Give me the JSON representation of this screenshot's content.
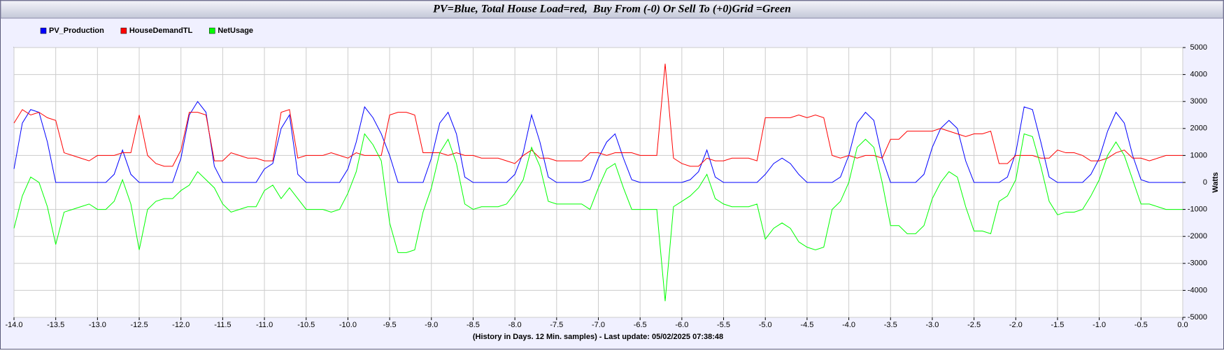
{
  "chart_data": {
    "type": "line",
    "title": "PV=Blue, Total House Load=red,  Buy From (-0) Or Sell To (+0)Grid =Green",
    "x_label": "(History in Days. 12 Min. samples) - Last update: 05/02/2025 07:38:48",
    "y_label": "Watts",
    "y_axis_side": "right",
    "grid": true,
    "xlim": [
      -14,
      0
    ],
    "xticks": [
      {
        "value": -14,
        "label": "-14.0"
      },
      -13.5,
      {
        "value": -13,
        "label": "-13.0"
      },
      -12.5,
      {
        "value": -12,
        "label": "-12.0"
      },
      -11.5,
      {
        "value": -11,
        "label": "-11.0"
      },
      -10.5,
      {
        "value": -10,
        "label": "-10.0"
      },
      -9.5,
      {
        "value": -9,
        "label": "-9.0"
      },
      -8.5,
      {
        "value": -8,
        "label": "-8.0"
      },
      -7.5,
      {
        "value": -7,
        "label": "-7.0"
      },
      -6.5,
      {
        "value": -6,
        "label": "-6.0"
      },
      -5.5,
      {
        "value": -5,
        "label": "-5.0"
      },
      -4.5,
      {
        "value": -4,
        "label": "-4.0"
      },
      -3.5,
      {
        "value": -3,
        "label": "-3.0"
      },
      -2.5,
      {
        "value": -2,
        "label": "-2.0"
      },
      -1.5,
      {
        "value": -1,
        "label": "-1.0"
      },
      -0.5,
      {
        "value": 0,
        "label": "0.0"
      }
    ],
    "ylim": [
      -5000,
      5000
    ],
    "yticks": [
      -5000,
      -4000,
      -3000,
      -2000,
      -1000,
      0,
      1000,
      2000,
      3000,
      4000,
      5000
    ],
    "x": [
      -14,
      -13.9,
      -13.8,
      -13.7,
      -13.6,
      -13.5,
      -13.4,
      -13.3,
      -13.2,
      -13.1,
      -13,
      -12.9,
      -12.8,
      -12.7,
      -12.6,
      -12.5,
      -12.4,
      -12.3,
      -12.2,
      -12.1,
      -12,
      -11.9,
      -11.8,
      -11.7,
      -11.6,
      -11.5,
      -11.4,
      -11.3,
      -11.2,
      -11.1,
      -11,
      -10.9,
      -10.8,
      -10.7,
      -10.6,
      -10.5,
      -10.4,
      -10.3,
      -10.2,
      -10.1,
      -10,
      -9.9,
      -9.8,
      -9.7,
      -9.6,
      -9.5,
      -9.4,
      -9.3,
      -9.2,
      -9.1,
      -9,
      -8.9,
      -8.8,
      -8.7,
      -8.6,
      -8.5,
      -8.4,
      -8.3,
      -8.2,
      -8.1,
      -8,
      -7.9,
      -7.8,
      -7.7,
      -7.6,
      -7.5,
      -7.4,
      -7.3,
      -7.2,
      -7.1,
      -7,
      -6.9,
      -6.8,
      -6.7,
      -6.6,
      -6.5,
      -6.4,
      -6.3,
      -6.2,
      -6.1,
      -6,
      -5.9,
      -5.8,
      -5.7,
      -5.6,
      -5.5,
      -5.4,
      -5.3,
      -5.2,
      -5.1,
      -5,
      -4.9,
      -4.8,
      -4.7,
      -4.6,
      -4.5,
      -4.4,
      -4.3,
      -4.2,
      -4.1,
      -4,
      -3.9,
      -3.8,
      -3.7,
      -3.6,
      -3.5,
      -3.4,
      -3.3,
      -3.2,
      -3.1,
      -3,
      -2.9,
      -2.8,
      -2.7,
      -2.6,
      -2.5,
      -2.4,
      -2.3,
      -2.2,
      -2.1,
      -2,
      -1.9,
      -1.8,
      -1.7,
      -1.6,
      -1.5,
      -1.4,
      -1.3,
      -1.2,
      -1.1,
      -1,
      -0.9,
      -0.8,
      -0.7,
      -0.6,
      -0.5,
      -0.4,
      -0.3,
      -0.2,
      -0.1,
      0
    ],
    "series": [
      {
        "name": "PV_Production",
        "color": "#0000ff",
        "values": [
          500,
          2200,
          2700,
          2600,
          1500,
          0,
          0,
          0,
          0,
          0,
          0,
          0,
          300,
          1200,
          300,
          0,
          0,
          0,
          0,
          0,
          900,
          2500,
          3000,
          2600,
          600,
          0,
          0,
          0,
          0,
          0,
          500,
          700,
          2000,
          2500,
          300,
          0,
          0,
          0,
          0,
          0,
          500,
          1500,
          2800,
          2400,
          1800,
          1000,
          0,
          0,
          0,
          0,
          900,
          2200,
          2600,
          1800,
          200,
          0,
          0,
          0,
          0,
          0,
          300,
          1100,
          2500,
          1500,
          200,
          0,
          0,
          0,
          0,
          100,
          900,
          1500,
          1800,
          900,
          100,
          0,
          0,
          0,
          0,
          0,
          0,
          100,
          400,
          1200,
          200,
          0,
          0,
          0,
          0,
          0,
          300,
          700,
          900,
          700,
          300,
          0,
          0,
          0,
          0,
          200,
          1000,
          2200,
          2600,
          2300,
          900,
          0,
          0,
          0,
          0,
          300,
          1300,
          2000,
          2300,
          2000,
          800,
          0,
          0,
          0,
          0,
          200,
          1100,
          2800,
          2700,
          1500,
          200,
          0,
          0,
          0,
          0,
          300,
          900,
          1900,
          2600,
          2200,
          1000,
          100,
          0,
          0,
          0,
          0,
          0
        ]
      },
      {
        "name": "HouseDemandTL",
        "color": "#ff0000",
        "values": [
          2200,
          2700,
          2500,
          2600,
          2400,
          2300,
          1100,
          1000,
          900,
          800,
          1000,
          1000,
          1000,
          1100,
          1100,
          2500,
          1000,
          700,
          600,
          600,
          1200,
          2600,
          2600,
          2500,
          800,
          800,
          1100,
          1000,
          900,
          900,
          800,
          800,
          2600,
          2700,
          900,
          1000,
          1000,
          1000,
          1100,
          1000,
          900,
          1100,
          1000,
          1000,
          1000,
          2500,
          2600,
          2600,
          2500,
          1100,
          1100,
          1100,
          1000,
          1100,
          1000,
          1000,
          900,
          900,
          900,
          800,
          700,
          1000,
          1200,
          900,
          900,
          800,
          800,
          800,
          800,
          1100,
          1100,
          1000,
          1100,
          1100,
          1100,
          1000,
          1000,
          1000,
          4400,
          900,
          700,
          600,
          600,
          900,
          800,
          800,
          900,
          900,
          900,
          800,
          2400,
          2400,
          2400,
          2400,
          2500,
          2400,
          2500,
          2400,
          1000,
          900,
          1000,
          900,
          1000,
          1000,
          900,
          1600,
          1600,
          1900,
          1900,
          1900,
          1900,
          2000,
          1900,
          1800,
          1700,
          1800,
          1800,
          1900,
          700,
          700,
          1000,
          1000,
          1000,
          900,
          900,
          1200,
          1100,
          1100,
          1000,
          800,
          800,
          900,
          1100,
          1200,
          900,
          900,
          800,
          900,
          1000,
          1000,
          1000
        ]
      },
      {
        "name": "NetUsage",
        "color": "#00ff00",
        "values": [
          -1700,
          -500,
          200,
          0,
          -900,
          -2300,
          -1100,
          -1000,
          -900,
          -800,
          -1000,
          -1000,
          -700,
          100,
          -800,
          -2500,
          -1000,
          -700,
          -600,
          -600,
          -300,
          -100,
          400,
          100,
          -200,
          -800,
          -1100,
          -1000,
          -900,
          -900,
          -300,
          -100,
          -600,
          -200,
          -600,
          -1000,
          -1000,
          -1000,
          -1100,
          -1000,
          -400,
          400,
          1800,
          1400,
          800,
          -1500,
          -2600,
          -2600,
          -2500,
          -1100,
          -200,
          1100,
          1600,
          700,
          -800,
          -1000,
          -900,
          -900,
          -900,
          -800,
          -400,
          100,
          1300,
          600,
          -700,
          -800,
          -800,
          -800,
          -800,
          -1000,
          -200,
          500,
          700,
          -200,
          -1000,
          -1000,
          -1000,
          -1000,
          -4400,
          -900,
          -700,
          -500,
          -200,
          300,
          -600,
          -800,
          -900,
          -900,
          -900,
          -800,
          -2100,
          -1700,
          -1500,
          -1700,
          -2200,
          -2400,
          -2500,
          -2400,
          -1000,
          -700,
          0,
          1300,
          1600,
          1300,
          0,
          -1600,
          -1600,
          -1900,
          -1900,
          -1600,
          -600,
          0,
          400,
          200,
          -900,
          -1800,
          -1800,
          -1900,
          -700,
          -500,
          100,
          1800,
          1700,
          600,
          -700,
          -1200,
          -1100,
          -1100,
          -1000,
          -500,
          100,
          1000,
          1500,
          1000,
          100,
          -800,
          -800,
          -900,
          -1000,
          -1000,
          -1000
        ]
      }
    ]
  }
}
